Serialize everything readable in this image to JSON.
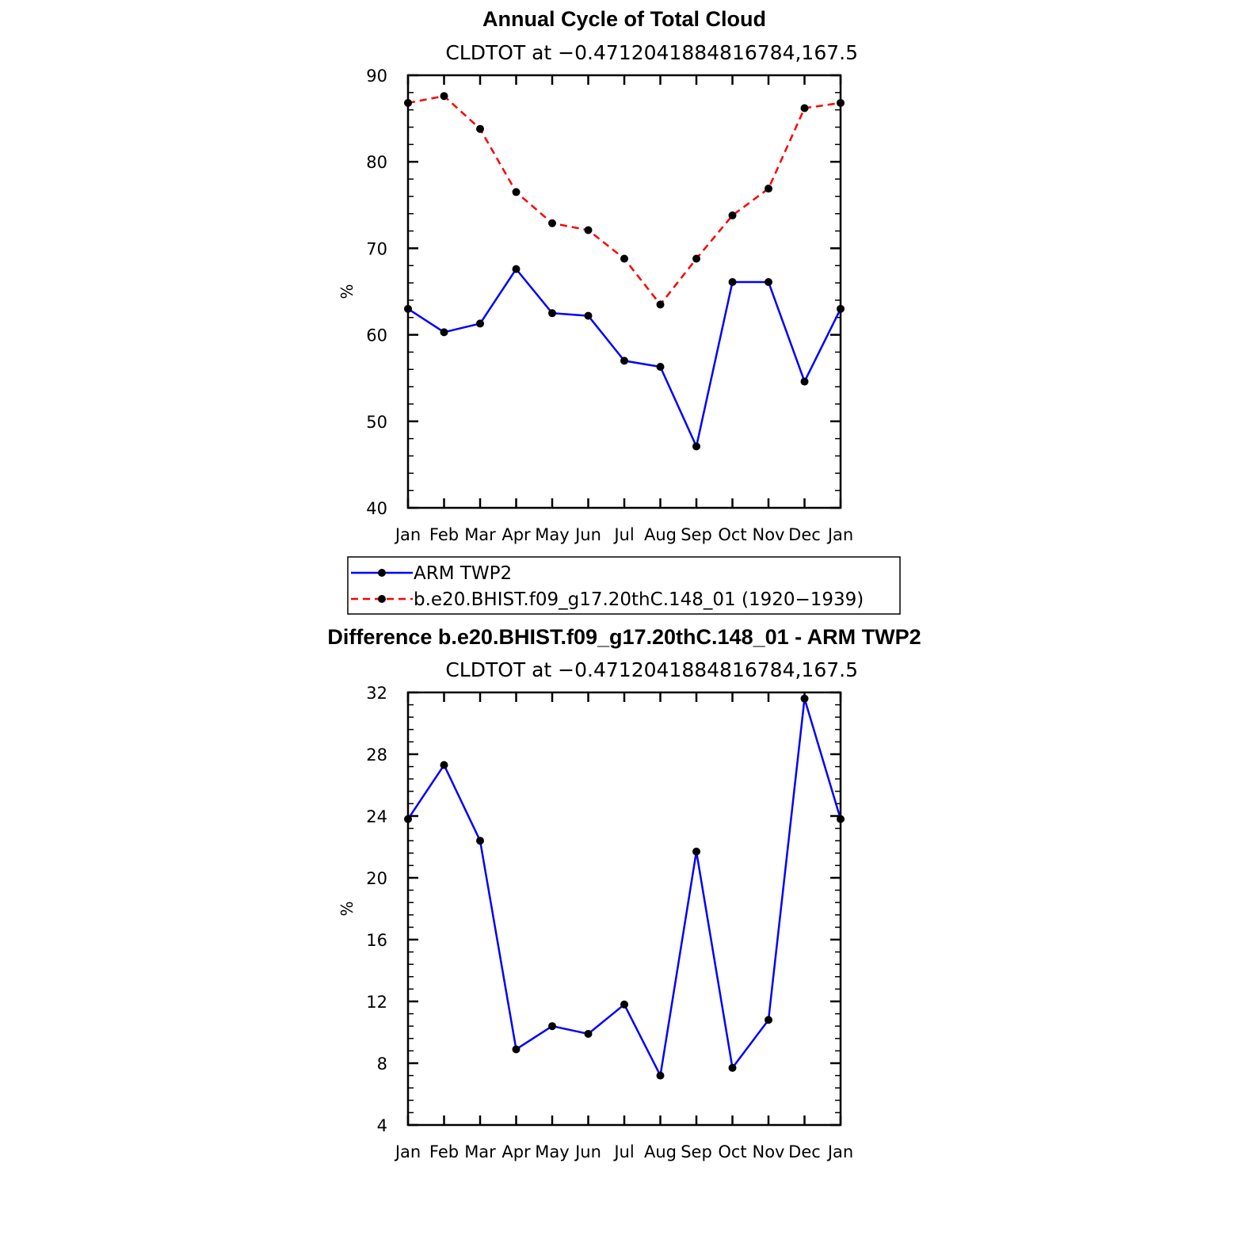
{
  "chart_data": [
    {
      "type": "line",
      "title": "Annual Cycle of Total Cloud",
      "subtitle": "CLDTOT at −0.4712041884816784,167.5",
      "xlabel": "",
      "ylabel": "%",
      "categories": [
        "Jan",
        "Feb",
        "Mar",
        "Apr",
        "May",
        "Jun",
        "Jul",
        "Aug",
        "Sep",
        "Oct",
        "Nov",
        "Dec",
        "Jan"
      ],
      "ylim": [
        40,
        90
      ],
      "yticks": [
        40,
        50,
        60,
        70,
        80,
        90
      ],
      "series": [
        {
          "name": "ARM TWP2",
          "color": "#0000ff",
          "dash": "solid",
          "values": [
            63.0,
            60.3,
            61.3,
            67.6,
            62.5,
            62.2,
            57.0,
            56.3,
            47.1,
            66.1,
            66.1,
            54.6,
            63.0
          ]
        },
        {
          "name": "b.e20.BHIST.f09_g17.20thC.148_01 (1920−1939)",
          "color": "#ff0000",
          "dash": "dashed",
          "values": [
            86.8,
            87.6,
            83.8,
            76.5,
            72.9,
            72.1,
            68.8,
            63.5,
            68.8,
            73.8,
            76.9,
            86.2,
            86.8
          ]
        }
      ],
      "legend": {
        "position": "below",
        "entries": [
          "ARM TWP2",
          "b.e20.BHIST.f09_g17.20thC.148_01 (1920−1939)"
        ]
      }
    },
    {
      "type": "line",
      "title": "Difference b.e20.BHIST.f09_g17.20thC.148_01 - ARM TWP2",
      "subtitle": "CLDTOT at −0.4712041884816784,167.5",
      "xlabel": "",
      "ylabel": "%",
      "categories": [
        "Jan",
        "Feb",
        "Mar",
        "Apr",
        "May",
        "Jun",
        "Jul",
        "Aug",
        "Sep",
        "Oct",
        "Nov",
        "Dec",
        "Jan"
      ],
      "ylim": [
        4,
        32
      ],
      "yticks": [
        4,
        8,
        12,
        16,
        20,
        24,
        28,
        32
      ],
      "series": [
        {
          "name": "Difference",
          "color": "#0000ff",
          "dash": "solid",
          "values": [
            23.8,
            27.3,
            22.4,
            8.9,
            10.4,
            9.9,
            11.8,
            7.2,
            21.7,
            7.7,
            10.8,
            31.6,
            23.8
          ]
        }
      ]
    }
  ]
}
